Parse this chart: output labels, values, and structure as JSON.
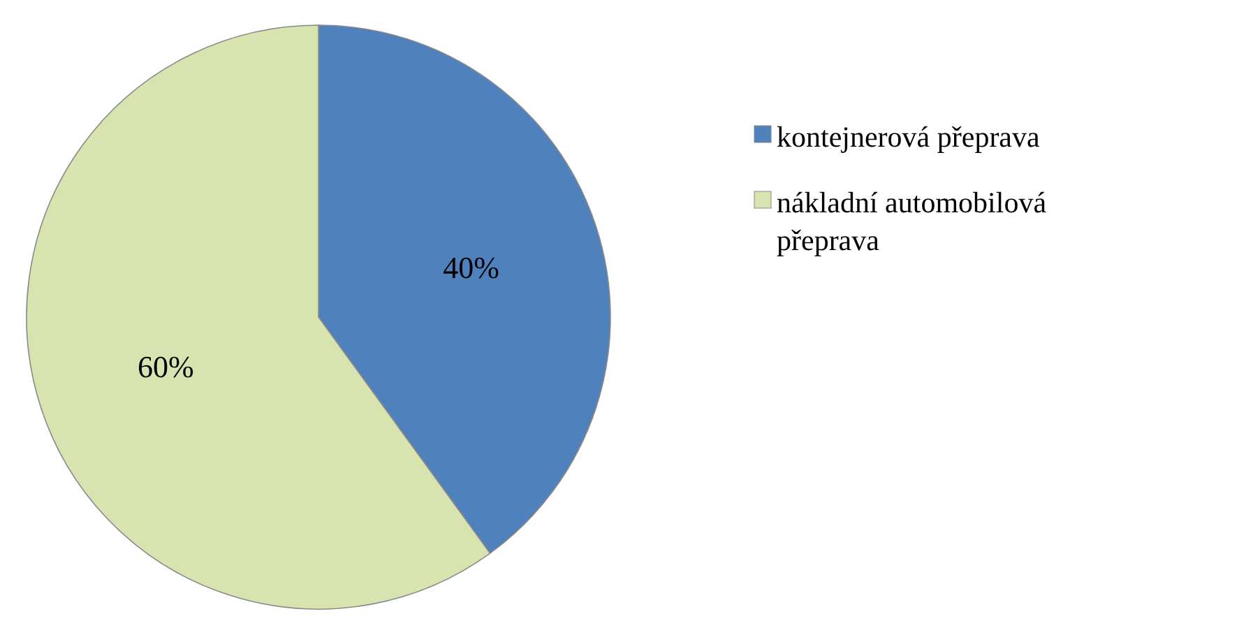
{
  "chart_data": {
    "type": "pie",
    "categories": [
      "kontejnerová přeprava",
      "nákladní automobilová přeprava"
    ],
    "values": [
      40,
      60
    ],
    "value_labels": [
      "40%",
      "60%"
    ],
    "colors": [
      "#4f81bd",
      "#d7e4b0"
    ],
    "legend": "right"
  }
}
